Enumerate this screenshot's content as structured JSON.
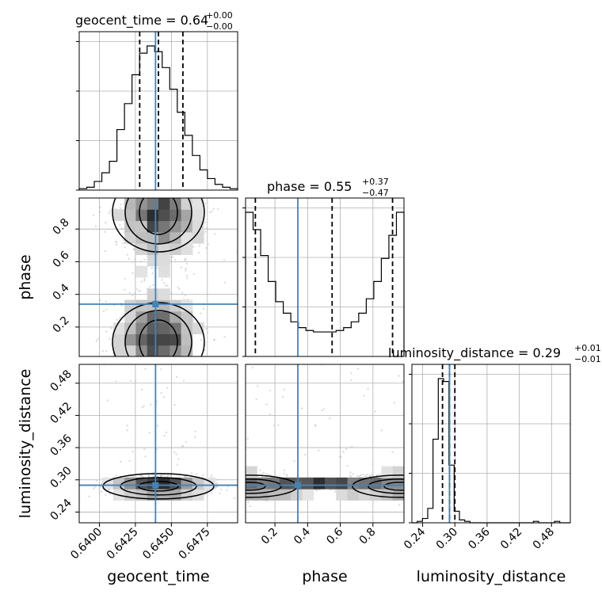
{
  "chart_data": {
    "type": "corner",
    "parameters": [
      "geocent_time",
      "phase",
      "luminosity_distance"
    ],
    "colors": {
      "truth": "#4682b4",
      "hist": "#000000",
      "grid": "#b0b0b0",
      "points": "#bfbfbf"
    },
    "truths": {
      "geocent_time": 0.6439,
      "phase": 0.34,
      "luminosity_distance": 0.29
    },
    "titles": [
      {
        "text": "geocent_time = 0.64",
        "plus": "+0.00",
        "minus": "−0.00"
      },
      {
        "text": "phase = 0.55",
        "plus": "+0.37",
        "minus": "−0.47"
      },
      {
        "text": "luminosity_distance = 0.29",
        "plus": "+0.01",
        "minus": "−0.01"
      }
    ],
    "ranges": {
      "geocent_time": [
        0.6386,
        0.6496
      ],
      "phase": [
        0.02,
        0.99
      ],
      "luminosity_distance": [
        0.22,
        0.515
      ]
    },
    "ticks": {
      "geocent_time": [
        "0.6400",
        "0.6425",
        "0.6450",
        "0.6475"
      ],
      "phase": [
        "0.2",
        "0.4",
        "0.6",
        "0.8"
      ],
      "luminosity_distance": [
        "0.24",
        "0.30",
        "0.36",
        "0.42",
        "0.48"
      ]
    },
    "quantiles": {
      "geocent_time": [
        0.6428,
        0.6441,
        0.6458
      ],
      "phase": [
        0.08,
        0.55,
        0.92
      ],
      "luminosity_distance": [
        0.277,
        0.29,
        0.3
      ]
    },
    "histograms": {
      "geocent_time": [
        1,
        2,
        6,
        12,
        20,
        42,
        60,
        80,
        95,
        100,
        96,
        85,
        70,
        54,
        38,
        24,
        14,
        8,
        4,
        2,
        1
      ],
      "phase": [
        100,
        88,
        70,
        52,
        38,
        30,
        24,
        20,
        18,
        17,
        17,
        17,
        18,
        20,
        24,
        30,
        40,
        52,
        68,
        84,
        100
      ],
      "luminosity_distance": [
        0,
        1,
        3,
        10,
        58,
        100,
        98,
        40,
        8,
        2,
        1,
        0,
        0,
        0,
        0,
        0,
        0,
        0,
        0,
        0,
        0,
        0,
        0,
        1,
        0,
        0,
        0,
        1,
        0,
        0
      ]
    },
    "axis_labels": {
      "x": [
        "geocent_time",
        "phase",
        "luminosity_distance"
      ],
      "y": [
        "phase",
        "luminosity_distance"
      ]
    },
    "grid": true
  }
}
